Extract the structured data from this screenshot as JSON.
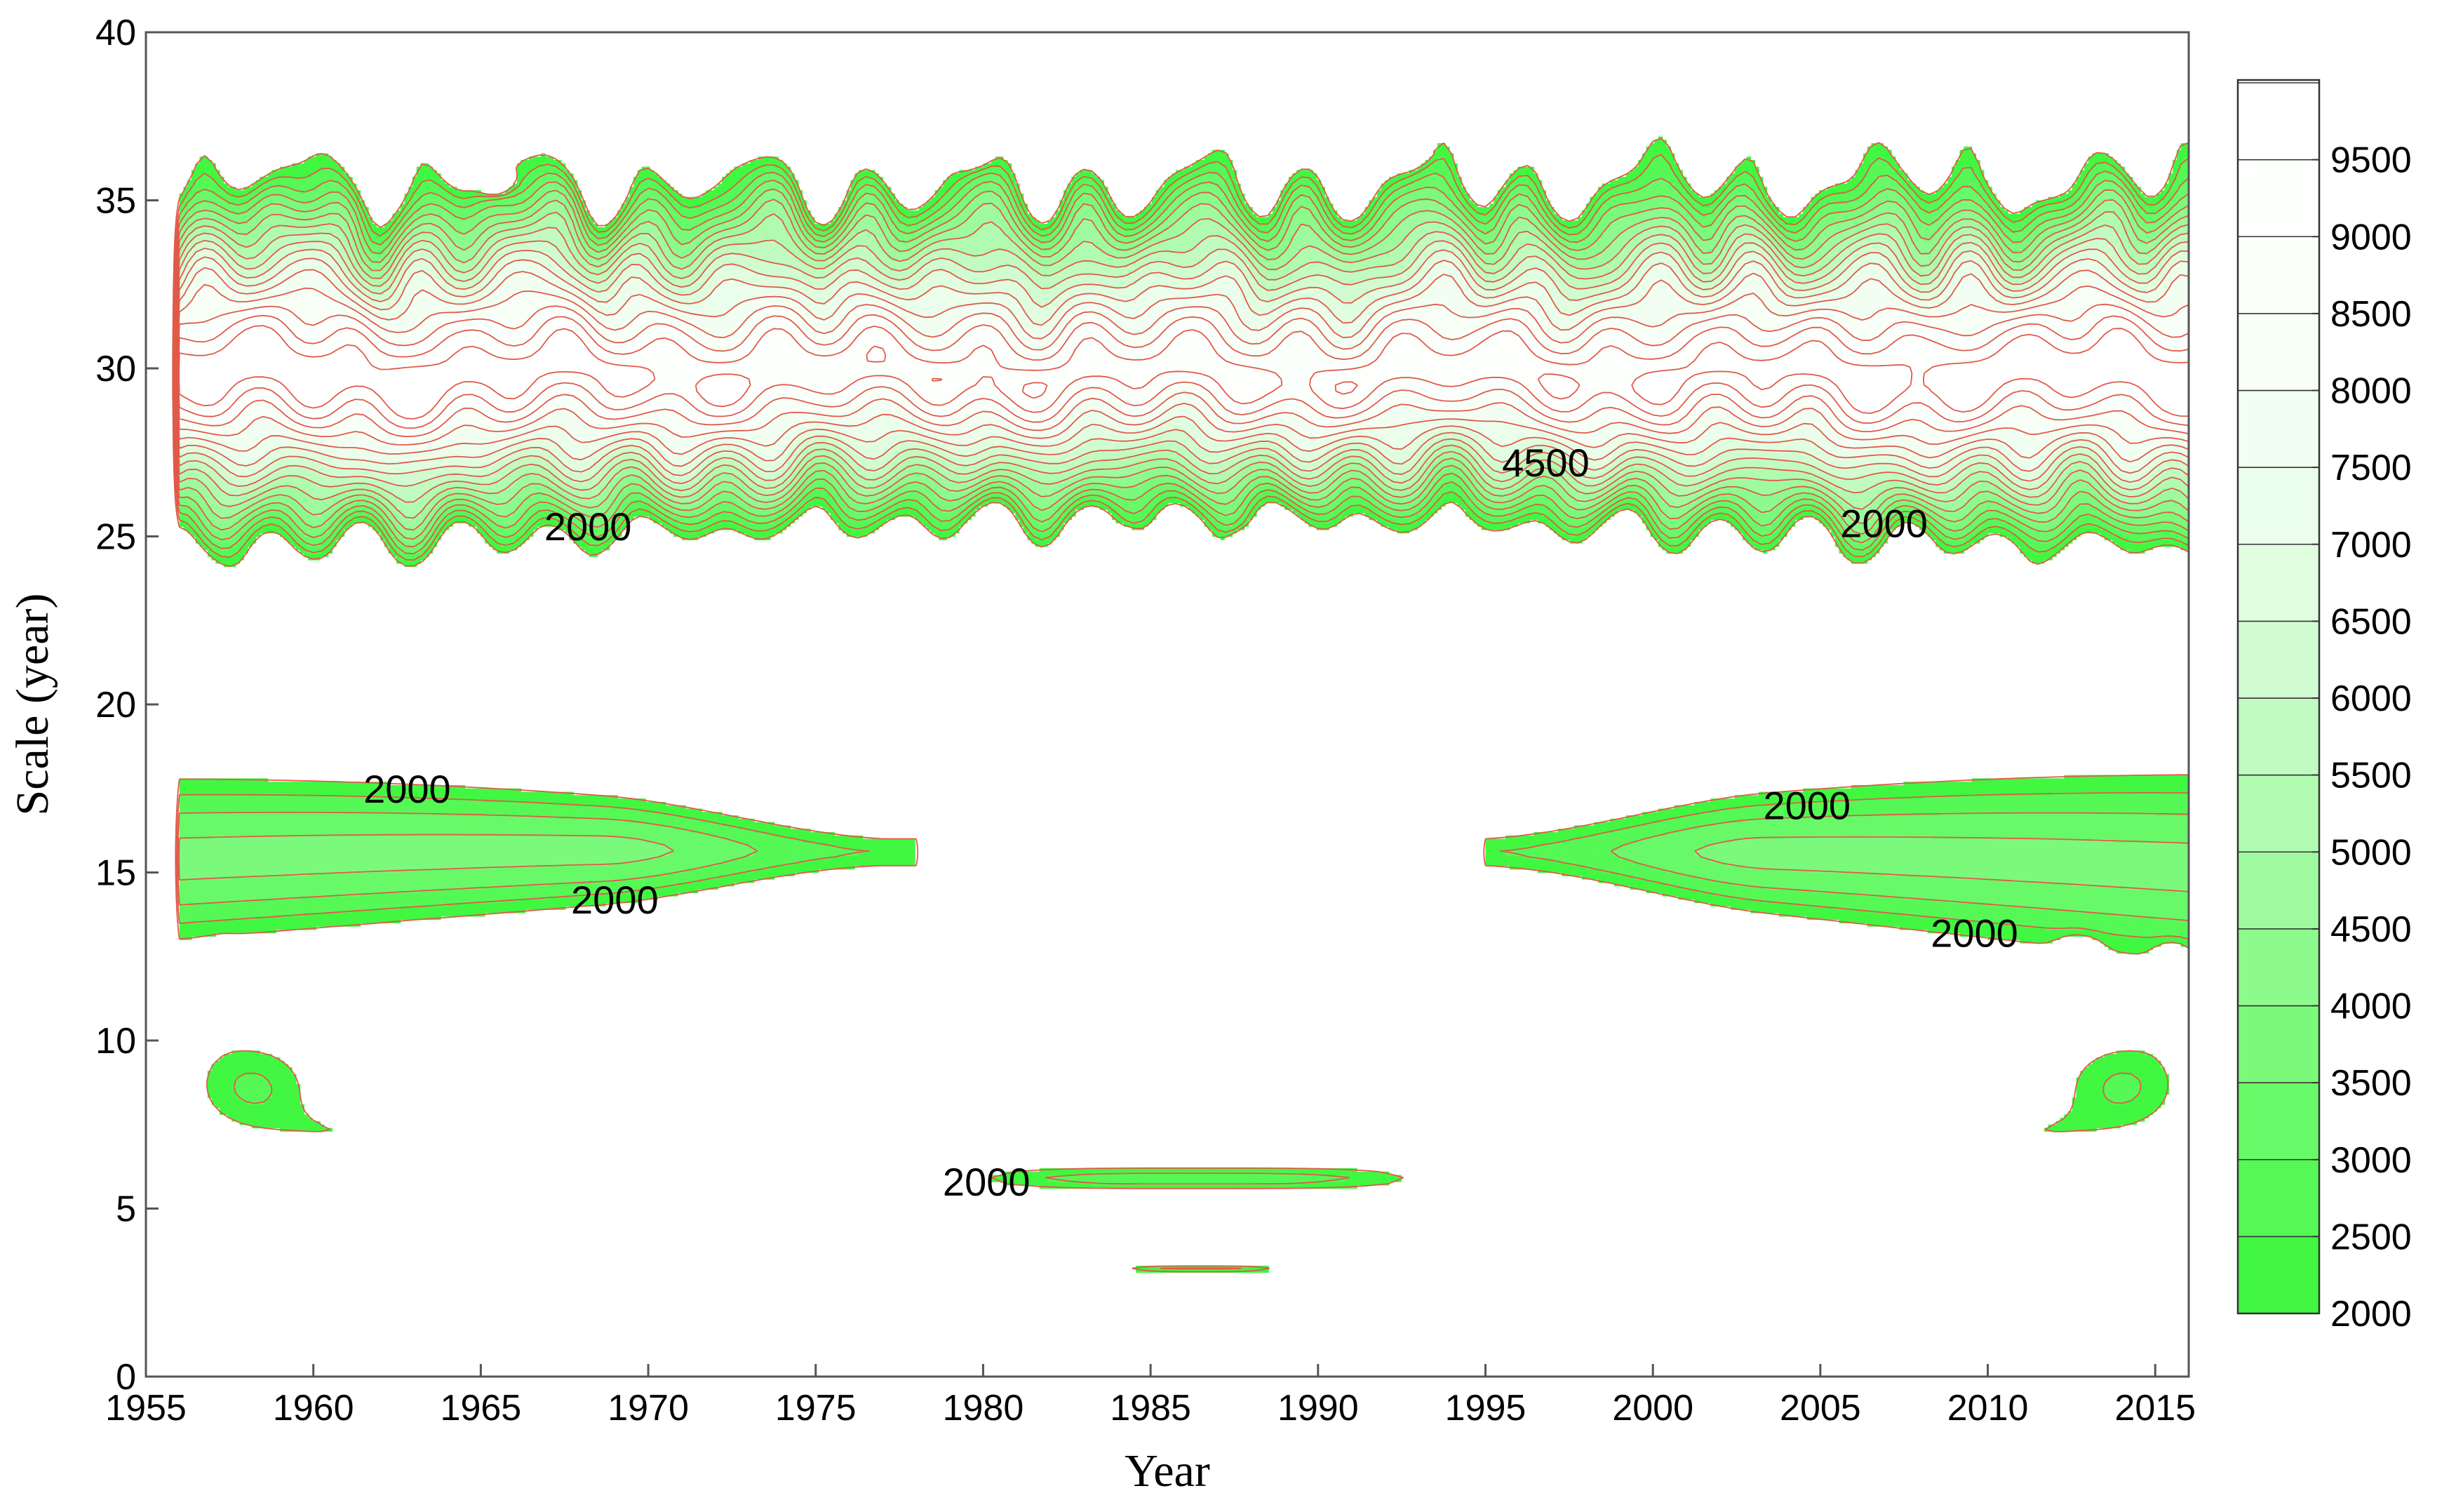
{
  "chart_data": {
    "type": "heatmap",
    "subtype": "filled-contour",
    "title": "",
    "xlabel": "Year",
    "ylabel": "Scale (year)",
    "xlim": [
      1955,
      2016
    ],
    "ylim": [
      0,
      40
    ],
    "x_ticks": [
      "1955",
      "1960",
      "1965",
      "1970",
      "1975",
      "1980",
      "1985",
      "1990",
      "1995",
      "2000",
      "2005",
      "2010",
      "2015"
    ],
    "y_ticks": [
      "0",
      "5",
      "10",
      "15",
      "20",
      "25",
      "30",
      "35",
      "40"
    ],
    "colorbar": {
      "levels": [
        "2000",
        "2500",
        "3000",
        "3500",
        "4000",
        "4500",
        "5000",
        "5500",
        "6000",
        "6500",
        "7000",
        "7500",
        "8000",
        "8500",
        "9000",
        "9500"
      ],
      "colors": [
        "#41f741",
        "#55f855",
        "#68f968",
        "#7bf97b",
        "#8dfa8d",
        "#9ffa9f",
        "#b0fbb0",
        "#c1fbc1",
        "#d1fcd1",
        "#e0fde0",
        "#ebfdeb",
        "#f2fef2",
        "#f7fff7",
        "#fbfffb",
        "#fdfffd",
        "#ffffff"
      ],
      "max_color": "#ffffff"
    },
    "contour_line_color": "#e05a4a",
    "grid": false,
    "regions": [
      {
        "name": "main-band",
        "x_range": [
          1956,
          2016
        ],
        "y_range": [
          24,
          37.5
        ],
        "peak_scale": 30,
        "peak_value": 9500
      },
      {
        "name": "left-lobe",
        "x_range": [
          1956,
          1977
        ],
        "y_range": [
          6.5,
          17.7
        ],
        "peak_scale": 15.5,
        "peak_value": 3500
      },
      {
        "name": "right-lobe",
        "x_range": [
          1995,
          2016
        ],
        "y_range": [
          6.5,
          17.8
        ],
        "peak_scale": 15.5,
        "peak_value": 3500
      },
      {
        "name": "small-band",
        "x_range": [
          1978.5,
          1995
        ],
        "y_range": [
          5.4,
          6.5
        ],
        "peak_scale": 5.8,
        "peak_value": 2500
      },
      {
        "name": "tiny-band",
        "x_range": [
          1983.5,
          1989.5
        ],
        "y_range": [
          3.0,
          3.4
        ],
        "peak_scale": 3.2,
        "peak_value": 2500
      }
    ],
    "contour_labels": [
      {
        "text": "2000",
        "x": 1968.2,
        "y": 25.3
      },
      {
        "text": "4500",
        "x": 1996.8,
        "y": 27.2
      },
      {
        "text": "2000",
        "x": 2006.9,
        "y": 25.4
      },
      {
        "text": "2000",
        "x": 1962.8,
        "y": 17.5
      },
      {
        "text": "2000",
        "x": 1969.0,
        "y": 14.2
      },
      {
        "text": "2000",
        "x": 2004.6,
        "y": 17.0
      },
      {
        "text": "2000",
        "x": 2009.6,
        "y": 13.2
      },
      {
        "text": "2000",
        "x": 1980.1,
        "y": 5.8
      }
    ]
  }
}
